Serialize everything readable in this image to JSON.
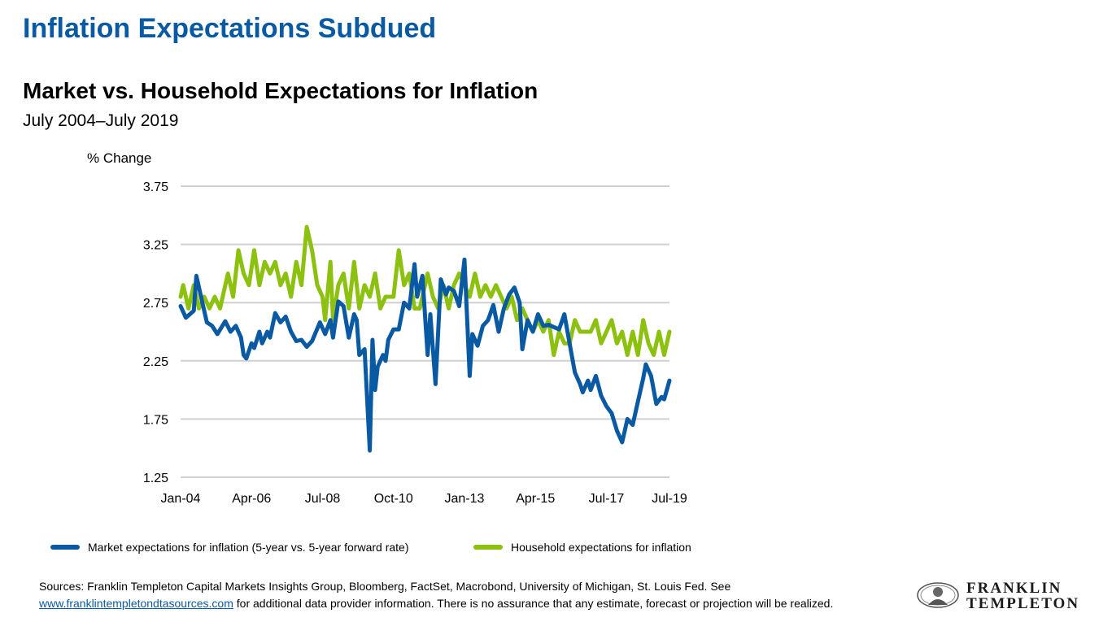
{
  "header": {
    "page_title": "Inflation Expectations Subdued"
  },
  "chart_data": {
    "type": "line",
    "title": "Market vs. Household Expectations for Inflation",
    "subtitle": "July 2004–July 2019",
    "ylabel": "% Change",
    "xlabel": "",
    "ylim": [
      1.25,
      3.75
    ],
    "yticks": [
      "1.25",
      "1.75",
      "2.25",
      "2.75",
      "3.25",
      "3.75"
    ],
    "xticks": [
      "Jan-04",
      "Apr-06",
      "Jul-08",
      "Oct-10",
      "Jan-13",
      "Apr-15",
      "Jul-17",
      "Jul-19"
    ],
    "grid": true,
    "legend_position": "bottom",
    "series": [
      {
        "name": "Market expectations for inflation (5-year vs. 5-year forward rate)",
        "color": "#0a5aa3",
        "points": [
          [
            "Jan-04",
            2.72
          ],
          [
            "Mar-04",
            2.62
          ],
          [
            "Jun-04",
            2.68
          ],
          [
            "Jul-04",
            2.98
          ],
          [
            "Sep-04",
            2.78
          ],
          [
            "Nov-04",
            2.58
          ],
          [
            "Jan-05",
            2.55
          ],
          [
            "Mar-05",
            2.48
          ],
          [
            "Jun-05",
            2.59
          ],
          [
            "Aug-05",
            2.5
          ],
          [
            "Oct-05",
            2.55
          ],
          [
            "Dec-05",
            2.45
          ],
          [
            "Jan-06",
            2.3
          ],
          [
            "Feb-06",
            2.27
          ],
          [
            "Apr-06",
            2.4
          ],
          [
            "May-06",
            2.36
          ],
          [
            "Jul-06",
            2.5
          ],
          [
            "Aug-06",
            2.4
          ],
          [
            "Oct-06",
            2.5
          ],
          [
            "Nov-06",
            2.45
          ],
          [
            "Jan-07",
            2.66
          ],
          [
            "Mar-07",
            2.58
          ],
          [
            "May-07",
            2.63
          ],
          [
            "Jul-07",
            2.5
          ],
          [
            "Sep-07",
            2.42
          ],
          [
            "Nov-07",
            2.43
          ],
          [
            "Jan-08",
            2.37
          ],
          [
            "Mar-08",
            2.42
          ],
          [
            "Jun-08",
            2.58
          ],
          [
            "Aug-08",
            2.48
          ],
          [
            "Oct-08",
            2.6
          ],
          [
            "Nov-08",
            2.45
          ],
          [
            "Jan-09",
            2.76
          ],
          [
            "Mar-09",
            2.72
          ],
          [
            "May-09",
            2.45
          ],
          [
            "Jul-09",
            2.65
          ],
          [
            "Aug-09",
            2.6
          ],
          [
            "Sep-09",
            2.3
          ],
          [
            "Nov-09",
            2.35
          ],
          [
            "Jan-10",
            1.48
          ],
          [
            "Feb-10",
            2.43
          ],
          [
            "Mar-10",
            2.0
          ],
          [
            "Apr-10",
            2.2
          ],
          [
            "Jun-10",
            2.3
          ],
          [
            "Jul-10",
            2.25
          ],
          [
            "Aug-10",
            2.43
          ],
          [
            "Oct-10",
            2.52
          ],
          [
            "Dec-10",
            2.52
          ],
          [
            "Feb-11",
            2.75
          ],
          [
            "Apr-11",
            2.7
          ],
          [
            "Jun-11",
            3.08
          ],
          [
            "Jul-11",
            2.8
          ],
          [
            "Sep-11",
            2.98
          ],
          [
            "Nov-11",
            2.3
          ],
          [
            "Dec-11",
            2.65
          ],
          [
            "Feb-12",
            2.05
          ],
          [
            "Apr-12",
            2.95
          ],
          [
            "Jun-12",
            2.82
          ],
          [
            "Jul-12",
            2.88
          ],
          [
            "Sep-12",
            2.85
          ],
          [
            "Nov-12",
            2.72
          ],
          [
            "Jan-13",
            3.12
          ],
          [
            "Mar-13",
            2.12
          ],
          [
            "Apr-13",
            2.48
          ],
          [
            "Jun-13",
            2.38
          ],
          [
            "Aug-13",
            2.55
          ],
          [
            "Oct-13",
            2.6
          ],
          [
            "Dec-13",
            2.73
          ],
          [
            "Feb-14",
            2.5
          ],
          [
            "Apr-14",
            2.7
          ],
          [
            "Jun-14",
            2.82
          ],
          [
            "Aug-14",
            2.88
          ],
          [
            "Oct-14",
            2.75
          ],
          [
            "Nov-14",
            2.35
          ],
          [
            "Jan-15",
            2.6
          ],
          [
            "Mar-15",
            2.5
          ],
          [
            "May-15",
            2.65
          ],
          [
            "Jul-15",
            2.55
          ],
          [
            "Sep-15",
            2.56
          ],
          [
            "Nov-15",
            2.54
          ],
          [
            "Jan-16",
            2.52
          ],
          [
            "Mar-16",
            2.65
          ],
          [
            "May-16",
            2.4
          ],
          [
            "Jul-16",
            2.15
          ],
          [
            "Sep-16",
            2.05
          ],
          [
            "Oct-16",
            1.98
          ],
          [
            "Dec-16",
            2.08
          ],
          [
            "Jan-17",
            2.0
          ],
          [
            "Mar-17",
            2.12
          ],
          [
            "May-17",
            1.95
          ],
          [
            "Jul-17",
            1.86
          ],
          [
            "Sep-17",
            1.8
          ],
          [
            "Nov-17",
            1.65
          ],
          [
            "Jan-18",
            1.55
          ],
          [
            "Mar-18",
            1.75
          ],
          [
            "May-18",
            1.7
          ],
          [
            "Jul-18",
            1.9
          ],
          [
            "Sep-18",
            2.1
          ],
          [
            "Oct-18",
            2.22
          ],
          [
            "Dec-18",
            2.12
          ],
          [
            "Feb-19",
            1.88
          ],
          [
            "Apr-19",
            1.94
          ],
          [
            "May-19",
            1.92
          ],
          [
            "Jul-19",
            2.08
          ]
        ]
      },
      {
        "name": "Household expectations for inflation",
        "color": "#8cc10f",
        "points": [
          [
            "Jan-04",
            2.8
          ],
          [
            "Feb-04",
            2.9
          ],
          [
            "Apr-04",
            2.7
          ],
          [
            "Jun-04",
            2.9
          ],
          [
            "Aug-04",
            2.7
          ],
          [
            "Oct-04",
            2.8
          ],
          [
            "Dec-04",
            2.7
          ],
          [
            "Feb-05",
            2.8
          ],
          [
            "Apr-05",
            2.7
          ],
          [
            "Jul-05",
            3.0
          ],
          [
            "Sep-05",
            2.8
          ],
          [
            "Nov-05",
            3.2
          ],
          [
            "Jan-06",
            3.0
          ],
          [
            "Mar-06",
            2.9
          ],
          [
            "May-06",
            3.2
          ],
          [
            "Jul-06",
            2.9
          ],
          [
            "Sep-06",
            3.1
          ],
          [
            "Nov-06",
            3.0
          ],
          [
            "Jan-07",
            3.1
          ],
          [
            "Mar-07",
            2.9
          ],
          [
            "May-07",
            3.0
          ],
          [
            "Jul-07",
            2.8
          ],
          [
            "Sep-07",
            3.1
          ],
          [
            "Nov-07",
            2.9
          ],
          [
            "Jan-08",
            3.4
          ],
          [
            "Mar-08",
            3.2
          ],
          [
            "May-08",
            2.9
          ],
          [
            "Jul-08",
            2.8
          ],
          [
            "Aug-08",
            2.6
          ],
          [
            "Oct-08",
            3.1
          ],
          [
            "Nov-08",
            2.6
          ],
          [
            "Jan-09",
            2.9
          ],
          [
            "Mar-09",
            3.0
          ],
          [
            "May-09",
            2.7
          ],
          [
            "Jul-09",
            3.1
          ],
          [
            "Sep-09",
            2.7
          ],
          [
            "Nov-09",
            2.9
          ],
          [
            "Jan-10",
            2.8
          ],
          [
            "Mar-10",
            3.0
          ],
          [
            "May-10",
            2.7
          ],
          [
            "Jul-10",
            2.8
          ],
          [
            "Oct-10",
            2.8
          ],
          [
            "Dec-10",
            3.2
          ],
          [
            "Feb-11",
            2.9
          ],
          [
            "Apr-11",
            3.0
          ],
          [
            "Jun-11",
            2.7
          ],
          [
            "Aug-11",
            2.7
          ],
          [
            "Nov-11",
            3.0
          ],
          [
            "Jan-12",
            2.8
          ],
          [
            "Mar-12",
            2.7
          ],
          [
            "May-12",
            2.9
          ],
          [
            "Jul-12",
            2.7
          ],
          [
            "Sep-12",
            2.9
          ],
          [
            "Nov-12",
            3.0
          ],
          [
            "Jan-13",
            2.9
          ],
          [
            "Mar-13",
            2.8
          ],
          [
            "May-13",
            3.0
          ],
          [
            "Jul-13",
            2.8
          ],
          [
            "Sep-13",
            2.9
          ],
          [
            "Nov-13",
            2.8
          ],
          [
            "Jan-14",
            2.9
          ],
          [
            "Mar-14",
            2.8
          ],
          [
            "May-14",
            2.7
          ],
          [
            "Jul-14",
            2.8
          ],
          [
            "Sep-14",
            2.6
          ],
          [
            "Nov-14",
            2.7
          ],
          [
            "Jan-15",
            2.6
          ],
          [
            "Mar-15",
            2.5
          ],
          [
            "May-15",
            2.6
          ],
          [
            "Jul-15",
            2.5
          ],
          [
            "Sep-15",
            2.6
          ],
          [
            "Nov-15",
            2.3
          ],
          [
            "Jan-16",
            2.5
          ],
          [
            "Mar-16",
            2.4
          ],
          [
            "May-16",
            2.4
          ],
          [
            "Jul-16",
            2.6
          ],
          [
            "Sep-16",
            2.5
          ],
          [
            "Nov-16",
            2.5
          ],
          [
            "Jan-17",
            2.5
          ],
          [
            "Mar-17",
            2.6
          ],
          [
            "May-17",
            2.4
          ],
          [
            "Jul-17",
            2.5
          ],
          [
            "Sep-17",
            2.6
          ],
          [
            "Nov-17",
            2.4
          ],
          [
            "Jan-18",
            2.5
          ],
          [
            "Mar-18",
            2.3
          ],
          [
            "May-18",
            2.5
          ],
          [
            "Jul-18",
            2.3
          ],
          [
            "Sep-18",
            2.6
          ],
          [
            "Nov-18",
            2.4
          ],
          [
            "Jan-19",
            2.3
          ],
          [
            "Mar-19",
            2.5
          ],
          [
            "May-19",
            2.3
          ],
          [
            "Jul-19",
            2.5
          ]
        ]
      }
    ]
  },
  "legend": {
    "market_label": "Market expectations for inflation (5-year vs. 5-year forward rate)",
    "household_label": "Household expectations for inflation"
  },
  "footer": {
    "sources_text": "Sources: Franklin Templeton Capital Markets Insights Group, Bloomberg, FactSet, Macrobond, University of Michigan, St. Louis Fed. See",
    "sources_link": "www.franklintempletondtasources.com",
    "sources_tail": " for additional data provider information. There is no assurance that any estimate, forecast or projection will be realized."
  },
  "logo": {
    "line1": "FRANKLIN",
    "line2": "TEMPLETON"
  }
}
